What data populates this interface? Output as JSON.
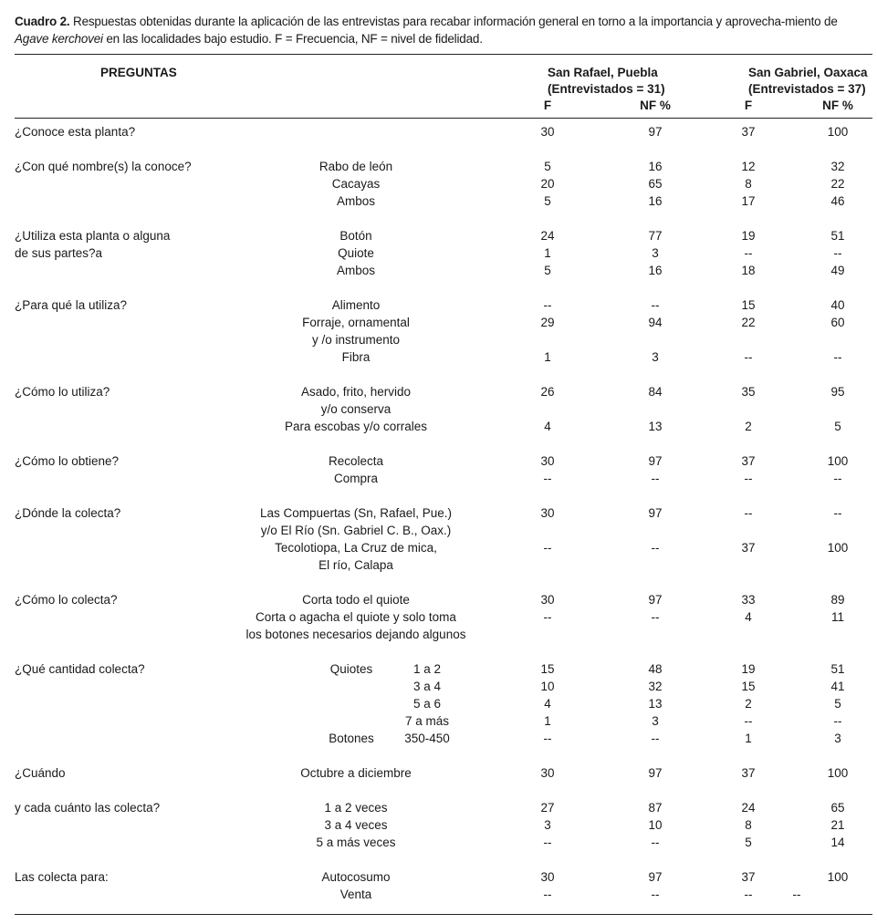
{
  "caption": {
    "label": "Cuadro 2.",
    "text_before": " Respuestas obtenidas durante la aplicación de las entrevistas para recabar información general en torno a la importancia y aprovecha-miento de ",
    "species": "Agave kerchovei",
    "text_after": " en las localidades bajo estudio. F = Frecuencia, NF = nivel de fidelidad."
  },
  "header": {
    "preguntas": "PREGUNTAS",
    "site1": "San Rafael, Puebla",
    "site1_n": "(Entrevistados = 31)",
    "site2": "San Gabriel, Oaxaca",
    "site2_n": "(Entrevistados = 37)",
    "f": "F",
    "nf": "NF %"
  },
  "groups": [
    {
      "rows": [
        {
          "q": "¿Conoce esta planta?",
          "opt": "",
          "sub": "",
          "f1": "30",
          "nf1": "97",
          "f2": "37",
          "nf2": "100"
        }
      ]
    },
    {
      "rows": [
        {
          "q": "¿Con qué nombre(s) la conoce?",
          "opt": "Rabo de león",
          "sub": "",
          "f1": "5",
          "nf1": "16",
          "f2": "12",
          "nf2": "32"
        },
        {
          "q": "",
          "opt": "Cacayas",
          "sub": "",
          "f1": "20",
          "nf1": "65",
          "f2": "8",
          "nf2": "22"
        },
        {
          "q": "",
          "opt": "Ambos",
          "sub": "",
          "f1": "5",
          "nf1": "16",
          "f2": "17",
          "nf2": "46"
        }
      ]
    },
    {
      "rows": [
        {
          "q": "¿Utiliza esta planta o alguna",
          "opt": "Botón",
          "sub": "",
          "f1": "24",
          "nf1": "77",
          "f2": "19",
          "nf2": "51"
        },
        {
          "q": "de sus partes?a",
          "opt": "Quiote",
          "sub": "",
          "f1": "1",
          "nf1": "3",
          "f2": "--",
          "nf2": "--"
        },
        {
          "q": "",
          "opt": "Ambos",
          "sub": "",
          "f1": "5",
          "nf1": "16",
          "f2": "18",
          "nf2": "49"
        }
      ]
    },
    {
      "rows": [
        {
          "q": "¿Para qué la utiliza?",
          "opt": "Alimento",
          "sub": "",
          "f1": "--",
          "nf1": "--",
          "f2": "15",
          "nf2": "40"
        },
        {
          "q": "",
          "opt": "Forraje, ornamental",
          "sub": "",
          "f1": "29",
          "nf1": "94",
          "f2": "22",
          "nf2": "60"
        },
        {
          "q": "",
          "opt": "y /o instrumento",
          "sub": "",
          "f1": "",
          "nf1": "",
          "f2": "",
          "nf2": ""
        },
        {
          "q": "",
          "opt": "Fibra",
          "sub": "",
          "f1": "1",
          "nf1": "3",
          "f2": "--",
          "nf2": "--"
        }
      ]
    },
    {
      "rows": [
        {
          "q": "¿Cómo lo utiliza?",
          "opt": "Asado, frito, hervido",
          "sub": "",
          "f1": "26",
          "nf1": "84",
          "f2": "35",
          "nf2": "95"
        },
        {
          "q": "",
          "opt": "y/o conserva",
          "sub": "",
          "f1": "",
          "nf1": "",
          "f2": "",
          "nf2": ""
        },
        {
          "q": "",
          "opt": "Para escobas y/o corrales",
          "sub": "",
          "f1": "4",
          "nf1": "13",
          "f2": "2",
          "nf2": "5"
        }
      ]
    },
    {
      "rows": [
        {
          "q": "¿Cómo lo obtiene?",
          "opt": "Recolecta",
          "sub": "",
          "f1": "30",
          "nf1": "97",
          "f2": "37",
          "nf2": "100"
        },
        {
          "q": "",
          "opt": "Compra",
          "sub": "",
          "f1": "--",
          "nf1": "--",
          "f2": "--",
          "nf2": "--"
        }
      ]
    },
    {
      "rows": [
        {
          "q": "¿Dónde la colecta?",
          "opt": "Las Compuertas (Sn, Rafael, Pue.)",
          "sub": "",
          "f1": "30",
          "nf1": "97",
          "f2": "--",
          "nf2": "--"
        },
        {
          "q": "",
          "opt": "y/o El Río (Sn. Gabriel C. B., Oax.)",
          "sub": "",
          "f1": "",
          "nf1": "",
          "f2": "",
          "nf2": ""
        },
        {
          "q": "",
          "opt": "Tecolotiopa, La Cruz de mica,",
          "sub": "",
          "f1": "--",
          "nf1": "--",
          "f2": "37",
          "nf2": "100"
        },
        {
          "q": "",
          "opt": "El río, Calapa",
          "sub": "",
          "f1": "",
          "nf1": "",
          "f2": "",
          "nf2": ""
        }
      ]
    },
    {
      "rows": [
        {
          "q": "¿Cómo lo colecta?",
          "opt": "Corta todo el quiote",
          "sub": "",
          "f1": "30",
          "nf1": "97",
          "f2": "33",
          "nf2": "89"
        },
        {
          "q": "",
          "opt": "Corta o agacha el quiote y solo toma",
          "sub": "",
          "f1": "--",
          "nf1": "--",
          "f2": "4",
          "nf2": "11"
        },
        {
          "q": "",
          "opt": "los botones necesarios dejando algunos",
          "sub": "",
          "f1": "",
          "nf1": "",
          "f2": "",
          "nf2": ""
        }
      ]
    },
    {
      "rows": [
        {
          "q": "¿Qué cantidad colecta?",
          "opt": "Quiotes",
          "sub": "1 a 2",
          "f1": "15",
          "nf1": "48",
          "f2": "19",
          "nf2": "51"
        },
        {
          "q": "",
          "opt": "",
          "sub": "3 a 4",
          "f1": "10",
          "nf1": "32",
          "f2": "15",
          "nf2": "41"
        },
        {
          "q": "",
          "opt": "",
          "sub": "5 a 6",
          "f1": "4",
          "nf1": "13",
          "f2": "2",
          "nf2": "5"
        },
        {
          "q": "",
          "opt": "",
          "sub": "7 a más",
          "f1": "1",
          "nf1": "3",
          "f2": "--",
          "nf2": "--"
        },
        {
          "q": "",
          "opt": "Botones",
          "sub": "350-450",
          "f1": "--",
          "nf1": "--",
          "f2": "1",
          "nf2": "3"
        }
      ]
    },
    {
      "rows": [
        {
          "q": "¿Cuándo",
          "opt": "Octubre a diciembre",
          "sub": "",
          "f1": "30",
          "nf1": "97",
          "f2": "37",
          "nf2": "100"
        }
      ]
    },
    {
      "rows": [
        {
          "q": "y cada cuánto las colecta?",
          "opt": "1 a 2 veces",
          "sub": "",
          "f1": "27",
          "nf1": "87",
          "f2": "24",
          "nf2": "65"
        },
        {
          "q": "",
          "opt": "3 a 4 veces",
          "sub": "",
          "f1": "3",
          "nf1": "10",
          "f2": "8",
          "nf2": "21"
        },
        {
          "q": "",
          "opt": "5 a más veces",
          "sub": "",
          "f1": "--",
          "nf1": "--",
          "f2": "5",
          "nf2": "14"
        }
      ]
    },
    {
      "rows": [
        {
          "q": "Las colecta para:",
          "opt": "Autocosumo",
          "sub": "",
          "f1": "30",
          "nf1": "97",
          "f2": "37",
          "nf2": "100"
        },
        {
          "q": "",
          "opt": "Venta",
          "sub": "",
          "f1": "--",
          "nf1": "--",
          "f2": "--",
          "nf2": "--",
          "shift": true
        }
      ]
    }
  ]
}
